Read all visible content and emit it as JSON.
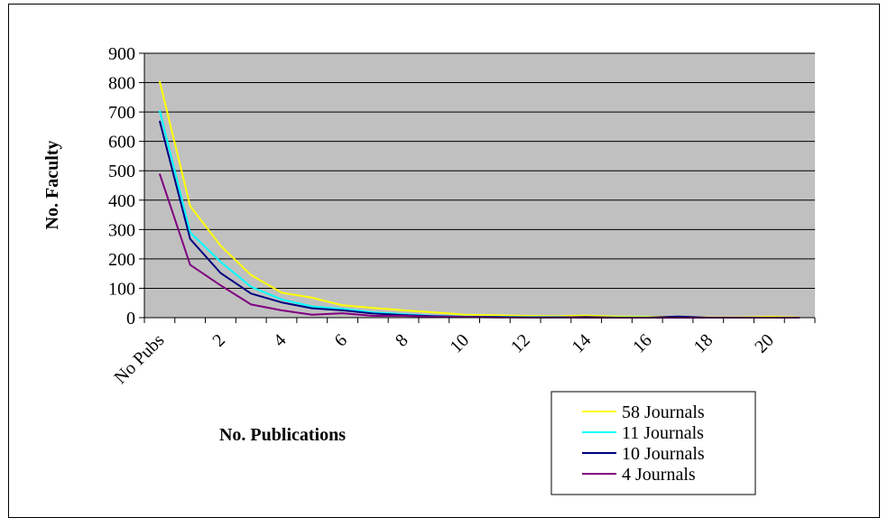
{
  "chart_data": {
    "type": "line",
    "xlabel": "No. Publications",
    "ylabel": "No. Faculty",
    "ylim": [
      0,
      900
    ],
    "yticks": [
      0,
      100,
      200,
      300,
      400,
      500,
      600,
      700,
      800,
      900
    ],
    "x_categories": [
      "No Pubs",
      "1",
      "2",
      "3",
      "4",
      "5",
      "6",
      "7",
      "8",
      "9",
      "10",
      "11",
      "12",
      "13",
      "14",
      "15",
      "16",
      "17",
      "18",
      "19",
      "20",
      "21"
    ],
    "x_tick_labels": [
      "No Pubs",
      "2",
      "4",
      "6",
      "8",
      "10",
      "12",
      "14",
      "16",
      "18",
      "20"
    ],
    "grid": true,
    "plot_background": "#c0c0c0",
    "legend_position": "bottom-right",
    "series": [
      {
        "name": "58 Journals",
        "color": "#ffff00",
        "values": [
          805,
          380,
          245,
          145,
          85,
          68,
          42,
          33,
          25,
          18,
          10,
          8,
          6,
          5,
          7,
          4,
          3,
          2,
          1,
          1,
          3,
          1
        ]
      },
      {
        "name": "11 Journals",
        "color": "#00ffff",
        "values": [
          705,
          290,
          190,
          105,
          62,
          38,
          30,
          18,
          12,
          6,
          4,
          3,
          2,
          2,
          1,
          1,
          1,
          0,
          0,
          0,
          0,
          0
        ]
      },
      {
        "name": "10 Journals",
        "color": "#000080",
        "values": [
          670,
          268,
          152,
          82,
          52,
          32,
          25,
          14,
          9,
          5,
          3,
          2,
          1,
          1,
          2,
          0,
          0,
          4,
          0,
          0,
          0,
          0
        ]
      },
      {
        "name": "4 Journals",
        "color": "#800080",
        "values": [
          490,
          180,
          110,
          45,
          25,
          10,
          15,
          6,
          6,
          3,
          2,
          1,
          1,
          1,
          0,
          0,
          0,
          0,
          0,
          0,
          0,
          0
        ]
      }
    ]
  }
}
